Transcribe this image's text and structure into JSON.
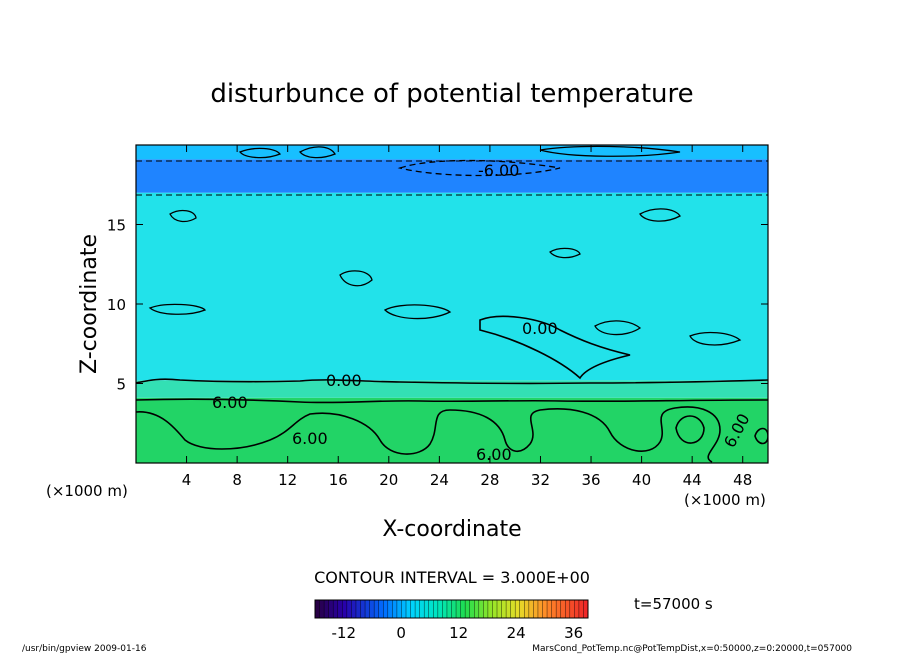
{
  "chart_data": {
    "type": "heatmap",
    "title": "disturbunce of potential temperature",
    "xlabel": "X-coordinate",
    "ylabel": "Z-coordinate",
    "x_unit_left": "(×1000 m)",
    "x_unit_right": "(×1000 m)",
    "xlim": [
      0,
      50
    ],
    "ylim": [
      0,
      20
    ],
    "x_ticks": [
      4,
      8,
      12,
      16,
      20,
      24,
      28,
      32,
      36,
      40,
      44,
      48
    ],
    "y_ticks": [
      5,
      10,
      15
    ],
    "contour_interval_text": "CONTOUR INTERVAL = 3.000E+00",
    "time_text": "t=57000 s",
    "contour_labels": [
      "-6.00",
      "0.00",
      "0.00",
      "6.00",
      "6.00",
      "6.00",
      "6.00"
    ],
    "colorbar": {
      "min": -18,
      "max": 39,
      "ticks": [
        -12,
        0,
        12,
        24,
        36
      ]
    },
    "bands": [
      {
        "z_from": 0,
        "z_to": 4.1,
        "value": 3,
        "color": "#22d466"
      },
      {
        "z_from": 4.1,
        "z_to": 5.2,
        "value": 0.5,
        "color": "#33e0b4"
      },
      {
        "z_from": 5.2,
        "z_to": 17.0,
        "value": -1.5,
        "color": "#22e2ea"
      },
      {
        "z_from": 17.0,
        "z_to": 19.1,
        "value": -8,
        "color": "#1f84ff"
      },
      {
        "z_from": 19.1,
        "z_to": 20,
        "value": -3,
        "color": "#18bfff"
      }
    ],
    "footer_left": "/usr/bin/gpview   2009-01-16",
    "footer_right": "MarsCond_PotTemp.nc@PotTempDist,x=0:50000,z=0:20000,t=057000"
  }
}
